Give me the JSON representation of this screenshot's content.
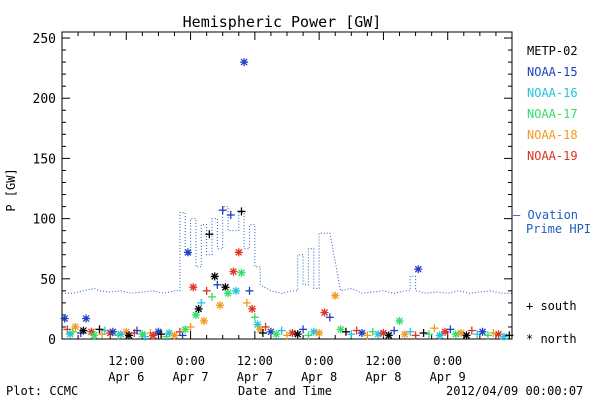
{
  "chart_data": {
    "type": "scatter",
    "title": "Hemispheric Power [GW]",
    "ylabel": "P [GW]",
    "xlabel": "Date and Time",
    "ylim": [
      0,
      255
    ],
    "y_ticks": [
      0,
      50,
      100,
      150,
      200,
      250
    ],
    "x_range_hours": [
      -36,
      48
    ],
    "x_ticks": [
      {
        "t": -24,
        "line1": "12:00",
        "line2": "Apr 6"
      },
      {
        "t": -12,
        "line1": "0:00",
        "line2": "Apr 7"
      },
      {
        "t": 0,
        "line1": "12:00",
        "line2": "Apr 7"
      },
      {
        "t": 12,
        "line1": "0:00",
        "line2": "Apr 8"
      },
      {
        "t": 24,
        "line1": "12:00",
        "line2": "Apr 8"
      },
      {
        "t": 36,
        "line1": "0:00",
        "line2": "Apr 9"
      }
    ],
    "legend": {
      "satellites": [
        {
          "name": "METP-02",
          "color": "#000000"
        },
        {
          "name": "NOAA-15",
          "color": "#1f3fbf"
        },
        {
          "name": "NOAA-16",
          "color": "#22c4dd"
        },
        {
          "name": "NOAA-17",
          "color": "#33dd66"
        },
        {
          "name": "NOAA-18",
          "color": "#f39a1c"
        },
        {
          "name": "NOAA-19",
          "color": "#dd3322"
        }
      ],
      "ovation": {
        "line1": "– Ovation",
        "line2": "Prime HPI",
        "color": "#1f5fbf"
      },
      "markers": [
        {
          "symbol": "+",
          "label": "south"
        },
        {
          "symbol": "*",
          "label": "north"
        }
      ]
    },
    "ovation_series": {
      "name": "Ovation Prime HPI",
      "x_hours": [
        -36,
        -34,
        -32,
        -30,
        -29,
        -27,
        -25,
        -23,
        -21,
        -19,
        -17,
        -15,
        -14,
        -14,
        -13,
        -13,
        -12,
        -12,
        -11,
        -11,
        -10,
        -10,
        -9,
        -9,
        -8,
        -8,
        -7,
        -7,
        -6,
        -6,
        -5,
        -5,
        -3,
        -3,
        -2,
        -2,
        -1,
        -1,
        0,
        0,
        1,
        1,
        3,
        5,
        7,
        8,
        8,
        9,
        9,
        10,
        10,
        11,
        11,
        12,
        12,
        14,
        16,
        18,
        20,
        22,
        24,
        26,
        28,
        29,
        29,
        30,
        30,
        32,
        34,
        36,
        38,
        40,
        42,
        44,
        46,
        48
      ],
      "y": [
        38,
        38,
        40,
        42,
        40,
        39,
        40,
        38,
        39,
        40,
        38,
        40,
        40,
        105,
        105,
        70,
        70,
        100,
        100,
        60,
        60,
        95,
        95,
        70,
        70,
        100,
        100,
        75,
        75,
        110,
        110,
        90,
        90,
        105,
        105,
        75,
        75,
        95,
        95,
        60,
        60,
        45,
        40,
        38,
        40,
        40,
        70,
        70,
        45,
        45,
        75,
        75,
        42,
        42,
        88,
        88,
        40,
        42,
        38,
        39,
        40,
        38,
        40,
        40,
        52,
        52,
        40,
        38,
        39,
        38,
        40,
        38,
        39,
        40,
        38,
        38
      ]
    },
    "points": [
      {
        "sat": "NOAA-15",
        "m": "*",
        "t": -35.5,
        "y": 17
      },
      {
        "sat": "NOAA-19",
        "m": "+",
        "t": -35,
        "y": 8
      },
      {
        "sat": "NOAA-16",
        "m": "*",
        "t": -34.5,
        "y": 4
      },
      {
        "sat": "NOAA-17",
        "m": "+",
        "t": -34,
        "y": 6
      },
      {
        "sat": "NOAA-18",
        "m": "*",
        "t": -33.5,
        "y": 10
      },
      {
        "sat": "NOAA-15",
        "m": "+",
        "t": -32.5,
        "y": 5
      },
      {
        "sat": "METP-02",
        "m": "*",
        "t": -32,
        "y": 7
      },
      {
        "sat": "NOAA-15",
        "m": "*",
        "t": -31.5,
        "y": 17
      },
      {
        "sat": "NOAA-19",
        "m": "*",
        "t": -30.5,
        "y": 6
      },
      {
        "sat": "NOAA-17",
        "m": "*",
        "t": -30,
        "y": 3
      },
      {
        "sat": "METP-02",
        "m": "+",
        "t": -29,
        "y": 8
      },
      {
        "sat": "NOAA-18",
        "m": "+",
        "t": -28.5,
        "y": 4
      },
      {
        "sat": "NOAA-16",
        "m": "+",
        "t": -28,
        "y": 7
      },
      {
        "sat": "NOAA-19",
        "m": "*",
        "t": -27,
        "y": 5
      },
      {
        "sat": "NOAA-15",
        "m": "*",
        "t": -26.5,
        "y": 6
      },
      {
        "sat": "NOAA-17",
        "m": "+",
        "t": -25.5,
        "y": 3
      },
      {
        "sat": "NOAA-16",
        "m": "*",
        "t": -25,
        "y": 4
      },
      {
        "sat": "NOAA-18",
        "m": "*",
        "t": -24,
        "y": 6
      },
      {
        "sat": "METP-02",
        "m": "*",
        "t": -23.5,
        "y": 3
      },
      {
        "sat": "NOAA-19",
        "m": "+",
        "t": -22.5,
        "y": 5
      },
      {
        "sat": "NOAA-15",
        "m": "+",
        "t": -22,
        "y": 7
      },
      {
        "sat": "NOAA-17",
        "m": "*",
        "t": -21,
        "y": 4
      },
      {
        "sat": "NOAA-16",
        "m": "+",
        "t": -20.5,
        "y": 2
      },
      {
        "sat": "NOAA-18",
        "m": "+",
        "t": -19.5,
        "y": 5
      },
      {
        "sat": "NOAA-19",
        "m": "*",
        "t": -19,
        "y": 3
      },
      {
        "sat": "NOAA-15",
        "m": "*",
        "t": -18,
        "y": 6
      },
      {
        "sat": "METP-02",
        "m": "+",
        "t": -17.5,
        "y": 4
      },
      {
        "sat": "NOAA-17",
        "m": "+",
        "t": -16.5,
        "y": 2
      },
      {
        "sat": "NOAA-16",
        "m": "*",
        "t": -16,
        "y": 5
      },
      {
        "sat": "NOAA-18",
        "m": "*",
        "t": -15,
        "y": 3
      },
      {
        "sat": "NOAA-19",
        "m": "+",
        "t": -14,
        "y": 6
      },
      {
        "sat": "NOAA-15",
        "m": "+",
        "t": -13.5,
        "y": 3
      },
      {
        "sat": "NOAA-17",
        "m": "*",
        "t": -13,
        "y": 8
      },
      {
        "sat": "NOAA-15",
        "m": "*",
        "t": -12.5,
        "y": 72
      },
      {
        "sat": "NOAA-18",
        "m": "+",
        "t": -12,
        "y": 10
      },
      {
        "sat": "NOAA-19",
        "m": "*",
        "t": -11.5,
        "y": 43
      },
      {
        "sat": "NOAA-17",
        "m": "*",
        "t": -11,
        "y": 20
      },
      {
        "sat": "METP-02",
        "m": "*",
        "t": -10.5,
        "y": 25
      },
      {
        "sat": "NOAA-16",
        "m": "+",
        "t": -10,
        "y": 30
      },
      {
        "sat": "NOAA-18",
        "m": "*",
        "t": -9.5,
        "y": 15
      },
      {
        "sat": "NOAA-19",
        "m": "+",
        "t": -9,
        "y": 40
      },
      {
        "sat": "METP-02",
        "m": "+",
        "t": -8.5,
        "y": 87
      },
      {
        "sat": "NOAA-17",
        "m": "+",
        "t": -8,
        "y": 35
      },
      {
        "sat": "METP-02",
        "m": "*",
        "t": -7.5,
        "y": 52
      },
      {
        "sat": "NOAA-15",
        "m": "+",
        "t": -7,
        "y": 45
      },
      {
        "sat": "NOAA-18",
        "m": "*",
        "t": -6.5,
        "y": 28
      },
      {
        "sat": "NOAA-15",
        "m": "+",
        "t": -6,
        "y": 107
      },
      {
        "sat": "METP-02",
        "m": "*",
        "t": -5.5,
        "y": 43
      },
      {
        "sat": "NOAA-17",
        "m": "*",
        "t": -5,
        "y": 38
      },
      {
        "sat": "NOAA-15",
        "m": "+",
        "t": -4.5,
        "y": 103
      },
      {
        "sat": "NOAA-19",
        "m": "*",
        "t": -4,
        "y": 56
      },
      {
        "sat": "NOAA-16",
        "m": "*",
        "t": -3.5,
        "y": 40
      },
      {
        "sat": "NOAA-19",
        "m": "*",
        "t": -3,
        "y": 72
      },
      {
        "sat": "METP-02",
        "m": "+",
        "t": -2.5,
        "y": 106
      },
      {
        "sat": "NOAA-17",
        "m": "*",
        "t": -2.5,
        "y": 55
      },
      {
        "sat": "NOAA-15",
        "m": "*",
        "t": -2,
        "y": 230
      },
      {
        "sat": "NOAA-18",
        "m": "+",
        "t": -1.5,
        "y": 30
      },
      {
        "sat": "NOAA-15",
        "m": "+",
        "t": -1,
        "y": 40
      },
      {
        "sat": "NOAA-19",
        "m": "*",
        "t": -0.5,
        "y": 25
      },
      {
        "sat": "NOAA-17",
        "m": "+",
        "t": 0,
        "y": 18
      },
      {
        "sat": "NOAA-16",
        "m": "*",
        "t": 0.5,
        "y": 12
      },
      {
        "sat": "NOAA-18",
        "m": "*",
        "t": 1,
        "y": 8
      },
      {
        "sat": "METP-02",
        "m": "+",
        "t": 1.5,
        "y": 5
      },
      {
        "sat": "NOAA-19",
        "m": "+",
        "t": 2,
        "y": 10
      },
      {
        "sat": "NOAA-15",
        "m": "*",
        "t": 3,
        "y": 6
      },
      {
        "sat": "NOAA-17",
        "m": "*",
        "t": 4,
        "y": 4
      },
      {
        "sat": "NOAA-16",
        "m": "+",
        "t": 5,
        "y": 7
      },
      {
        "sat": "NOAA-18",
        "m": "+",
        "t": 6,
        "y": 3
      },
      {
        "sat": "NOAA-19",
        "m": "*",
        "t": 7,
        "y": 5
      },
      {
        "sat": "METP-02",
        "m": "*",
        "t": 8,
        "y": 4
      },
      {
        "sat": "NOAA-15",
        "m": "+",
        "t": 9,
        "y": 8
      },
      {
        "sat": "NOAA-17",
        "m": "+",
        "t": 10,
        "y": 3
      },
      {
        "sat": "NOAA-16",
        "m": "*",
        "t": 11,
        "y": 6
      },
      {
        "sat": "NOAA-18",
        "m": "*",
        "t": 12,
        "y": 5
      },
      {
        "sat": "NOAA-19",
        "m": "*",
        "t": 13,
        "y": 22
      },
      {
        "sat": "NOAA-15",
        "m": "+",
        "t": 14,
        "y": 18
      },
      {
        "sat": "NOAA-18",
        "m": "*",
        "t": 15,
        "y": 36
      },
      {
        "sat": "NOAA-17",
        "m": "*",
        "t": 16,
        "y": 8
      },
      {
        "sat": "METP-02",
        "m": "+",
        "t": 17,
        "y": 6
      },
      {
        "sat": "NOAA-16",
        "m": "+",
        "t": 18,
        "y": 4
      },
      {
        "sat": "NOAA-19",
        "m": "+",
        "t": 19,
        "y": 7
      },
      {
        "sat": "NOAA-15",
        "m": "*",
        "t": 20,
        "y": 5
      },
      {
        "sat": "NOAA-18",
        "m": "+",
        "t": 21,
        "y": 3
      },
      {
        "sat": "NOAA-17",
        "m": "+",
        "t": 22,
        "y": 6
      },
      {
        "sat": "NOAA-16",
        "m": "*",
        "t": 23,
        "y": 4
      },
      {
        "sat": "NOAA-19",
        "m": "*",
        "t": 24,
        "y": 5
      },
      {
        "sat": "METP-02",
        "m": "*",
        "t": 25,
        "y": 3
      },
      {
        "sat": "NOAA-15",
        "m": "+",
        "t": 26,
        "y": 7
      },
      {
        "sat": "NOAA-17",
        "m": "*",
        "t": 27,
        "y": 15
      },
      {
        "sat": "NOAA-18",
        "m": "*",
        "t": 28,
        "y": 4
      },
      {
        "sat": "NOAA-16",
        "m": "+",
        "t": 29,
        "y": 6
      },
      {
        "sat": "NOAA-19",
        "m": "+",
        "t": 30,
        "y": 3
      },
      {
        "sat": "NOAA-15",
        "m": "*",
        "t": 30.5,
        "y": 58
      },
      {
        "sat": "METP-02",
        "m": "+",
        "t": 31.5,
        "y": 5
      },
      {
        "sat": "NOAA-17",
        "m": "+",
        "t": 32.5,
        "y": 4
      },
      {
        "sat": "NOAA-18",
        "m": "+",
        "t": 33.5,
        "y": 9
      },
      {
        "sat": "NOAA-16",
        "m": "*",
        "t": 34.5,
        "y": 3
      },
      {
        "sat": "NOAA-19",
        "m": "*",
        "t": 35.5,
        "y": 6
      },
      {
        "sat": "NOAA-15",
        "m": "+",
        "t": 36.5,
        "y": 8
      },
      {
        "sat": "NOAA-17",
        "m": "*",
        "t": 37.5,
        "y": 4
      },
      {
        "sat": "NOAA-18",
        "m": "*",
        "t": 38.5,
        "y": 5
      },
      {
        "sat": "METP-02",
        "m": "*",
        "t": 39.5,
        "y": 3
      },
      {
        "sat": "NOAA-19",
        "m": "+",
        "t": 40.5,
        "y": 7
      },
      {
        "sat": "NOAA-16",
        "m": "+",
        "t": 41.5,
        "y": 4
      },
      {
        "sat": "NOAA-15",
        "m": "*",
        "t": 42.5,
        "y": 6
      },
      {
        "sat": "NOAA-17",
        "m": "+",
        "t": 43.5,
        "y": 3
      },
      {
        "sat": "NOAA-18",
        "m": "+",
        "t": 44.5,
        "y": 5
      },
      {
        "sat": "NOAA-19",
        "m": "*",
        "t": 45.5,
        "y": 4
      },
      {
        "sat": "NOAA-16",
        "m": "*",
        "t": 46.5,
        "y": 2
      },
      {
        "sat": "METP-02",
        "m": "+",
        "t": 47.5,
        "y": 3
      }
    ]
  },
  "footer": {
    "left": "Plot: CCMC",
    "right": "2012/04/09 00:00:07"
  }
}
